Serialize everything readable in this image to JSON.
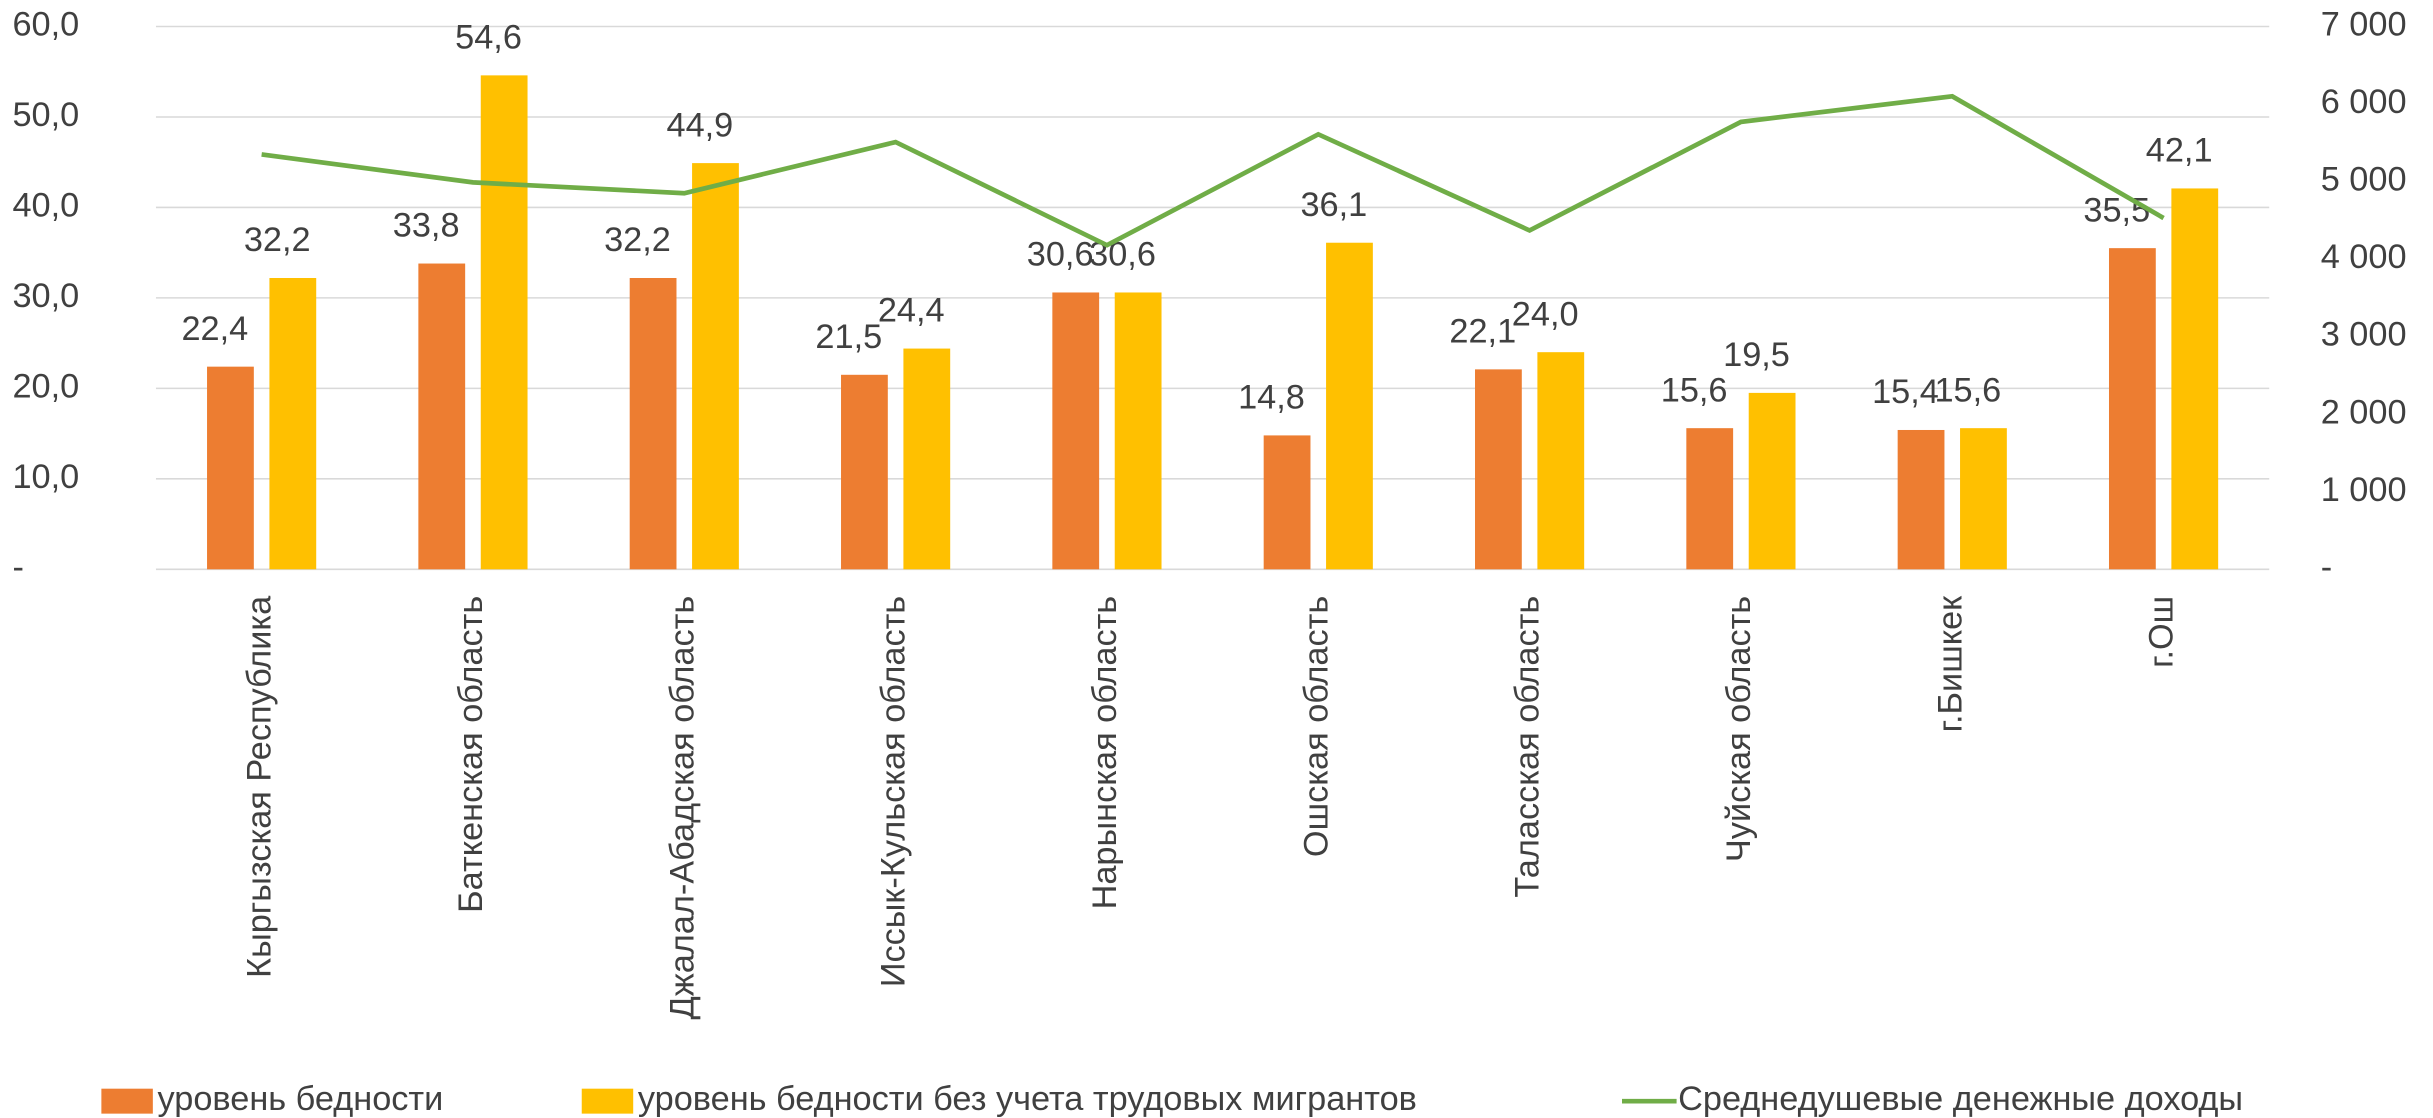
{
  "chart_data": {
    "type": "bar",
    "categories": [
      "Кыргызская Республика",
      "Баткенская область",
      "Джалал-Абадская область",
      "Иссык-Кульская область",
      "Нарынская область",
      "Ошская область",
      "Таласская область",
      "Чуйская область",
      "г.Бишкек",
      "г.Ош"
    ],
    "series": [
      {
        "name": "уровень бедности",
        "color": "#ED7D31",
        "type": "bar",
        "values": [
          22.4,
          33.8,
          32.2,
          21.5,
          30.6,
          14.8,
          22.1,
          15.6,
          15.4,
          35.5
        ],
        "value_labels": [
          "22,4",
          "33,8",
          "32,2",
          "21,5",
          "30,6",
          "14,8",
          "22,1",
          "15,6",
          "15,4",
          "35,5"
        ]
      },
      {
        "name": "уровень бедности без учета трудовых мигрантов",
        "color": "#FFC000",
        "type": "bar",
        "values": [
          32.2,
          54.6,
          44.9,
          24.4,
          30.6,
          36.1,
          24.0,
          19.5,
          15.6,
          42.1
        ],
        "value_labels": [
          "32,2",
          "54,6",
          "44,9",
          "24,4",
          "30,6",
          "36,1",
          "24,0",
          "19,5",
          "15,6",
          "42,1"
        ]
      },
      {
        "name": "Среднедушевые денежные доходы",
        "color": "#70AD47",
        "type": "line",
        "axis": "y2",
        "values": [
          5350,
          4990,
          4850,
          5510,
          4180,
          5610,
          4370,
          5770,
          6100,
          4530
        ]
      }
    ],
    "ylim": [
      0,
      60
    ],
    "yticks": [
      {
        "value": 0,
        "label": "-"
      },
      {
        "value": 10,
        "label": "10,0"
      },
      {
        "value": 20,
        "label": "20,0"
      },
      {
        "value": 30,
        "label": "30,0"
      },
      {
        "value": 40,
        "label": "40,0"
      },
      {
        "value": 50,
        "label": "50,0"
      },
      {
        "value": 60,
        "label": "60,0"
      }
    ],
    "y2lim": [
      0,
      7000
    ],
    "y2ticks": [
      {
        "value": 0,
        "label": "-"
      },
      {
        "value": 1000,
        "label": "1 000"
      },
      {
        "value": 2000,
        "label": "2 000"
      },
      {
        "value": 3000,
        "label": "3 000"
      },
      {
        "value": 4000,
        "label": "4 000"
      },
      {
        "value": 5000,
        "label": "5 000"
      },
      {
        "value": 6000,
        "label": "6 000"
      },
      {
        "value": 7000,
        "label": "7 000"
      }
    ],
    "grid": true,
    "legend": "bottom"
  }
}
